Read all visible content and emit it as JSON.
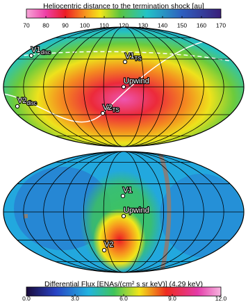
{
  "chart_data": [
    {
      "type": "skymap",
      "colorbar_title": "Heliocentric distance to the termination shock [au]",
      "clim": [
        70,
        170
      ],
      "cticks": [
        70,
        80,
        90,
        100,
        110,
        120,
        130,
        140,
        150,
        160,
        170
      ],
      "markers": [
        {
          "label": "V1",
          "sub": "disc"
        },
        {
          "label": "V1",
          "sub": "TS"
        },
        {
          "label": "Upwind",
          "sub": ""
        },
        {
          "label": "V2",
          "sub": "disc"
        },
        {
          "label": "V2",
          "sub": "TS"
        }
      ]
    },
    {
      "type": "skymap",
      "colorbar_title": "Differential Flux [ENAs/(cm² s sr keV)] (4.29 keV)",
      "clim": [
        0,
        12
      ],
      "cticks": [
        {
          "value": 0,
          "label": "0.0"
        },
        {
          "value": 3,
          "label": "3.0"
        },
        {
          "value": 6,
          "label": "6.0"
        },
        {
          "value": 9,
          "label": "9.0"
        },
        {
          "value": 12,
          "label": "12.0"
        }
      ],
      "markers": [
        {
          "label": "V1",
          "sub": ""
        },
        {
          "label": "Upwind",
          "sub": ""
        },
        {
          "label": "V2",
          "sub": ""
        }
      ]
    }
  ]
}
